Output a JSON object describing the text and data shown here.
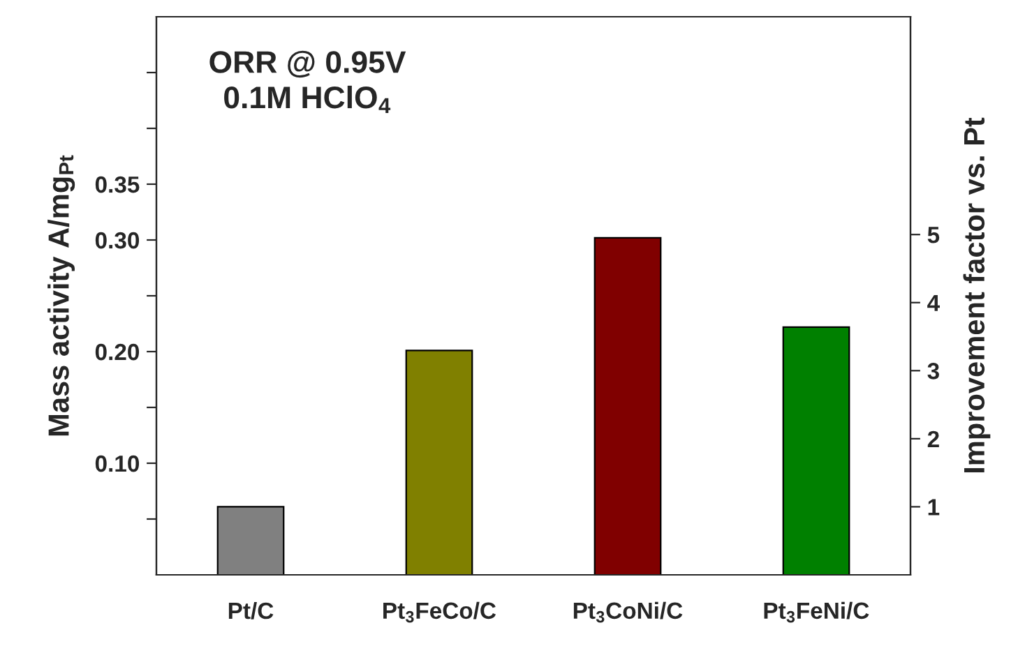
{
  "chart_data": {
    "type": "bar",
    "categories": [
      "Pt/C",
      "Pt$_{3}$FeCo/C",
      "Pt$_{3}$CoNi/C",
      "Pt$_{3}$FeNi/C"
    ],
    "values": [
      0.061,
      0.201,
      0.302,
      0.222
    ],
    "colors": [
      "#808080",
      "#808000",
      "#800000",
      "#008000"
    ],
    "ylabel": "Mass activity A/mg$_{Pt}$",
    "y2label": "Improvement factor vs. Pt",
    "ylim": [
      0,
      0.5
    ],
    "yticks": [
      {
        "value": 0.05,
        "label": null
      },
      {
        "value": 0.1,
        "label": "0.10"
      },
      {
        "value": 0.15,
        "label": null
      },
      {
        "value": 0.2,
        "label": "0.20"
      },
      {
        "value": 0.25,
        "label": null
      },
      {
        "value": 0.3,
        "label": "0.30"
      },
      {
        "value": 0.35,
        "label": "0.35"
      },
      {
        "value": 0.4,
        "label": null
      },
      {
        "value": 0.45,
        "label": null
      }
    ],
    "y2lim": [
      0,
      8.2
    ],
    "y2ticks": [
      1,
      2,
      3,
      4,
      5
    ],
    "annotations": [
      "ORR @ 0.95V\n0.1M HClO$_{4}$"
    ],
    "grid": false,
    "legend": false
  }
}
